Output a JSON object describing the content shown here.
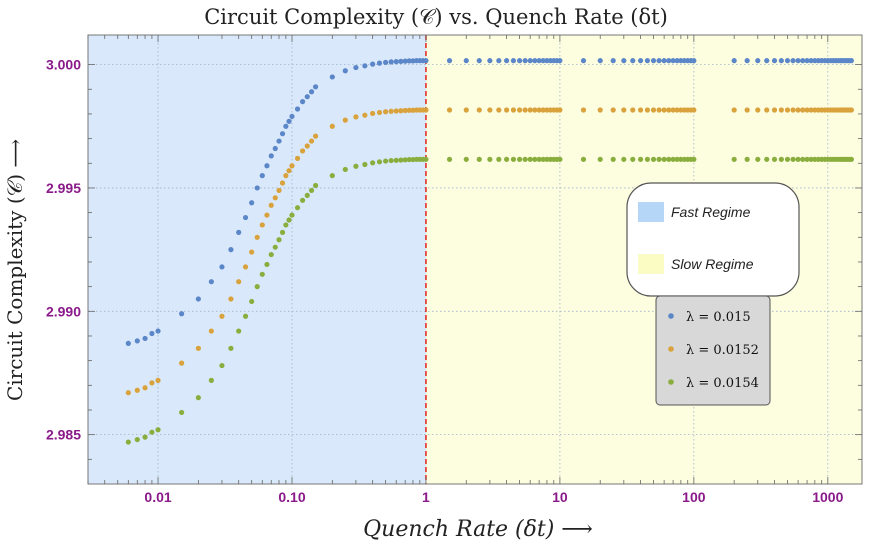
{
  "chart_data": {
    "type": "scatter",
    "title": "Circuit Complexity (𝒞) vs. Quench Rate (δt)",
    "xlabel": "Quench Rate (δt)  ⟶",
    "ylabel": "Circuit Complexity (𝒞)  ⟶",
    "x_scale": "log",
    "xlim": [
      0.003,
      1800
    ],
    "ylim": [
      2.983,
      3.0012
    ],
    "x_ticks": [
      {
        "value": 0.01,
        "label": "0.01"
      },
      {
        "value": 0.1,
        "label": "0.10"
      },
      {
        "value": 1,
        "label": "1"
      },
      {
        "value": 10,
        "label": "10"
      },
      {
        "value": 100,
        "label": "100"
      },
      {
        "value": 1000,
        "label": "1000"
      }
    ],
    "y_ticks": [
      {
        "value": 2.985,
        "label": "2.985"
      },
      {
        "value": 2.99,
        "label": "2.990"
      },
      {
        "value": 2.995,
        "label": "2.995"
      },
      {
        "value": 3.0,
        "label": "3.000"
      }
    ],
    "grid": true,
    "divider_x": 1,
    "regions": [
      {
        "name": "Fast Regime",
        "from": 0.003,
        "to": 1,
        "color": "#d9e9fb"
      },
      {
        "name": "Slow Regime",
        "from": 1,
        "to": 1800,
        "color": "#fdfde0"
      }
    ],
    "series": [
      {
        "name": "λ = 0.015",
        "color": "#5b86c8",
        "x": [
          0.006,
          0.007,
          0.008,
          0.009,
          0.01,
          0.015,
          0.02,
          0.025,
          0.03,
          0.035,
          0.04,
          0.045,
          0.05,
          0.055,
          0.06,
          0.065,
          0.07,
          0.075,
          0.08,
          0.085,
          0.09,
          0.095,
          0.1,
          0.11,
          0.12,
          0.13,
          0.14,
          0.15,
          0.2,
          0.25,
          0.3,
          0.35,
          0.4,
          0.45,
          0.5,
          0.55,
          0.6,
          0.65,
          0.7,
          0.75,
          0.8,
          0.85,
          0.9,
          0.95,
          1.0,
          1.5,
          2,
          2.5,
          3,
          3.5,
          4,
          4.5,
          5,
          5.5,
          6,
          6.5,
          7,
          7.5,
          8,
          8.5,
          9,
          9.5,
          10,
          15,
          20,
          25,
          30,
          35,
          40,
          45,
          50,
          55,
          60,
          65,
          70,
          75,
          80,
          85,
          90,
          95,
          100,
          200,
          250,
          300,
          350,
          400,
          450,
          500,
          550,
          600,
          650,
          700,
          750,
          800,
          850,
          900,
          950,
          1000,
          1050,
          1100,
          1150,
          1200,
          1250,
          1300,
          1350,
          1400,
          1450,
          1500
        ],
        "y": [
          2.9887,
          2.9888,
          2.9889,
          2.9891,
          2.9892,
          2.9899,
          2.9905,
          2.9912,
          2.9918,
          2.9925,
          2.9932,
          2.9938,
          2.9944,
          2.995,
          2.9955,
          2.9959,
          2.9963,
          2.9966,
          2.9969,
          2.9972,
          2.9975,
          2.9977,
          2.9979,
          2.9982,
          2.9985,
          2.9987,
          2.9989,
          2.9991,
          2.9995,
          2.99975,
          2.99988,
          2.99995,
          3.00002,
          3.00006,
          3.00009,
          3.00011,
          3.00012,
          3.00013,
          3.00014,
          3.00015,
          3.00015,
          3.00016,
          3.00016,
          3.00016,
          3.00016,
          3.00016,
          3.00016,
          3.00016,
          3.00016,
          3.00016,
          3.00016,
          3.00016,
          3.00016,
          3.00016,
          3.00016,
          3.00016,
          3.00016,
          3.00016,
          3.00016,
          3.00016,
          3.00016,
          3.00016,
          3.00016,
          3.00016,
          3.00016,
          3.00016,
          3.00016,
          3.00016,
          3.00016,
          3.00016,
          3.00016,
          3.00016,
          3.00016,
          3.00016,
          3.00016,
          3.00016,
          3.00016,
          3.00016,
          3.00016,
          3.00016,
          3.00016,
          3.00016,
          3.00016,
          3.00016,
          3.00016,
          3.00016,
          3.00016,
          3.00016,
          3.00016,
          3.00016,
          3.00016,
          3.00016,
          3.00016,
          3.00016,
          3.00016,
          3.00016,
          3.00016,
          3.00016,
          3.00016,
          3.00016,
          3.00016,
          3.00016,
          3.00016,
          3.00016,
          3.00016,
          3.00016,
          3.00016,
          3.00016
        ]
      },
      {
        "name": "λ = 0.0152",
        "color": "#d9a23c",
        "x": [
          0.006,
          0.007,
          0.008,
          0.009,
          0.01,
          0.015,
          0.02,
          0.025,
          0.03,
          0.035,
          0.04,
          0.045,
          0.05,
          0.055,
          0.06,
          0.065,
          0.07,
          0.075,
          0.08,
          0.085,
          0.09,
          0.095,
          0.1,
          0.11,
          0.12,
          0.13,
          0.14,
          0.15,
          0.2,
          0.25,
          0.3,
          0.35,
          0.4,
          0.45,
          0.5,
          0.55,
          0.6,
          0.65,
          0.7,
          0.75,
          0.8,
          0.85,
          0.9,
          0.95,
          1.0,
          1.5,
          2,
          2.5,
          3,
          3.5,
          4,
          4.5,
          5,
          5.5,
          6,
          6.5,
          7,
          7.5,
          8,
          8.5,
          9,
          9.5,
          10,
          15,
          20,
          25,
          30,
          35,
          40,
          45,
          50,
          55,
          60,
          65,
          70,
          75,
          80,
          85,
          90,
          95,
          100,
          200,
          250,
          300,
          350,
          400,
          450,
          500,
          550,
          600,
          650,
          700,
          750,
          800,
          850,
          900,
          950,
          1000,
          1050,
          1100,
          1150,
          1200,
          1250,
          1300,
          1350,
          1400,
          1450,
          1500
        ],
        "y": [
          2.9867,
          2.9868,
          2.9869,
          2.9871,
          2.9872,
          2.9879,
          2.9885,
          2.9892,
          2.9898,
          2.9905,
          2.9912,
          2.9918,
          2.9924,
          2.993,
          2.9935,
          2.9939,
          2.9943,
          2.9946,
          2.9949,
          2.9952,
          2.9955,
          2.9957,
          2.9959,
          2.9962,
          2.9965,
          2.9967,
          2.9969,
          2.9971,
          2.9975,
          2.99775,
          2.99788,
          2.99795,
          2.99802,
          2.99806,
          2.99809,
          2.99811,
          2.99812,
          2.99813,
          2.99814,
          2.99815,
          2.99815,
          2.99816,
          2.99816,
          2.99816,
          2.99816,
          2.99816,
          2.99816,
          2.99816,
          2.99816,
          2.99816,
          2.99816,
          2.99816,
          2.99816,
          2.99816,
          2.99816,
          2.99816,
          2.99816,
          2.99816,
          2.99816,
          2.99816,
          2.99816,
          2.99816,
          2.99816,
          2.99816,
          2.99816,
          2.99816,
          2.99816,
          2.99816,
          2.99816,
          2.99816,
          2.99816,
          2.99816,
          2.99816,
          2.99816,
          2.99816,
          2.99816,
          2.99816,
          2.99816,
          2.99816,
          2.99816,
          2.99816,
          2.99816,
          2.99816,
          2.99816,
          2.99816,
          2.99816,
          2.99816,
          2.99816,
          2.99816,
          2.99816,
          2.99816,
          2.99816,
          2.99816,
          2.99816,
          2.99816,
          2.99816,
          2.99816,
          2.99816,
          2.99816,
          2.99816,
          2.99816,
          2.99816,
          2.99816,
          2.99816,
          2.99816,
          2.99816,
          2.99816,
          2.99816
        ]
      },
      {
        "name": "λ = 0.0154",
        "color": "#8aae3e",
        "x": [
          0.006,
          0.007,
          0.008,
          0.009,
          0.01,
          0.015,
          0.02,
          0.025,
          0.03,
          0.035,
          0.04,
          0.045,
          0.05,
          0.055,
          0.06,
          0.065,
          0.07,
          0.075,
          0.08,
          0.085,
          0.09,
          0.095,
          0.1,
          0.11,
          0.12,
          0.13,
          0.14,
          0.15,
          0.2,
          0.25,
          0.3,
          0.35,
          0.4,
          0.45,
          0.5,
          0.55,
          0.6,
          0.65,
          0.7,
          0.75,
          0.8,
          0.85,
          0.9,
          0.95,
          1.0,
          1.5,
          2,
          2.5,
          3,
          3.5,
          4,
          4.5,
          5,
          5.5,
          6,
          6.5,
          7,
          7.5,
          8,
          8.5,
          9,
          9.5,
          10,
          15,
          20,
          25,
          30,
          35,
          40,
          45,
          50,
          55,
          60,
          65,
          70,
          75,
          80,
          85,
          90,
          95,
          100,
          200,
          250,
          300,
          350,
          400,
          450,
          500,
          550,
          600,
          650,
          700,
          750,
          800,
          850,
          900,
          950,
          1000,
          1050,
          1100,
          1150,
          1200,
          1250,
          1300,
          1350,
          1400,
          1450,
          1500
        ],
        "y": [
          2.9847,
          2.9848,
          2.9849,
          2.9851,
          2.9852,
          2.9859,
          2.9865,
          2.9872,
          2.9878,
          2.9885,
          2.9892,
          2.9898,
          2.9904,
          2.991,
          2.9915,
          2.9919,
          2.9923,
          2.9926,
          2.9929,
          2.9932,
          2.9935,
          2.9937,
          2.9939,
          2.9942,
          2.9945,
          2.9947,
          2.9949,
          2.9951,
          2.9955,
          2.99575,
          2.99588,
          2.99595,
          2.99602,
          2.99606,
          2.99609,
          2.99611,
          2.99612,
          2.99613,
          2.99614,
          2.99615,
          2.99615,
          2.99616,
          2.99616,
          2.99616,
          2.99616,
          2.99616,
          2.99616,
          2.99616,
          2.99616,
          2.99616,
          2.99616,
          2.99616,
          2.99616,
          2.99616,
          2.99616,
          2.99616,
          2.99616,
          2.99616,
          2.99616,
          2.99616,
          2.99616,
          2.99616,
          2.99616,
          2.99616,
          2.99616,
          2.99616,
          2.99616,
          2.99616,
          2.99616,
          2.99616,
          2.99616,
          2.99616,
          2.99616,
          2.99616,
          2.99616,
          2.99616,
          2.99616,
          2.99616,
          2.99616,
          2.99616,
          2.99616,
          2.99616,
          2.99616,
          2.99616,
          2.99616,
          2.99616,
          2.99616,
          2.99616,
          2.99616,
          2.99616,
          2.99616,
          2.99616,
          2.99616,
          2.99616,
          2.99616,
          2.99616,
          2.99616,
          2.99616,
          2.99616,
          2.99616,
          2.99616,
          2.99616,
          2.99616,
          2.99616,
          2.99616,
          2.99616,
          2.99616,
          2.99616
        ]
      }
    ],
    "regime_legend": {
      "fast_label": "Fast Regime",
      "slow_label": "Slow Regime"
    },
    "series_legend_placement": "right-middle"
  },
  "colors": {
    "tick_label": "#8a1a8a",
    "divider": "#e0302a",
    "grid": "#9fb3c8",
    "fast_swatch": "#b5d6f6",
    "slow_swatch": "#fbfbc4",
    "series_legend_bg": "#d8d8d8"
  }
}
